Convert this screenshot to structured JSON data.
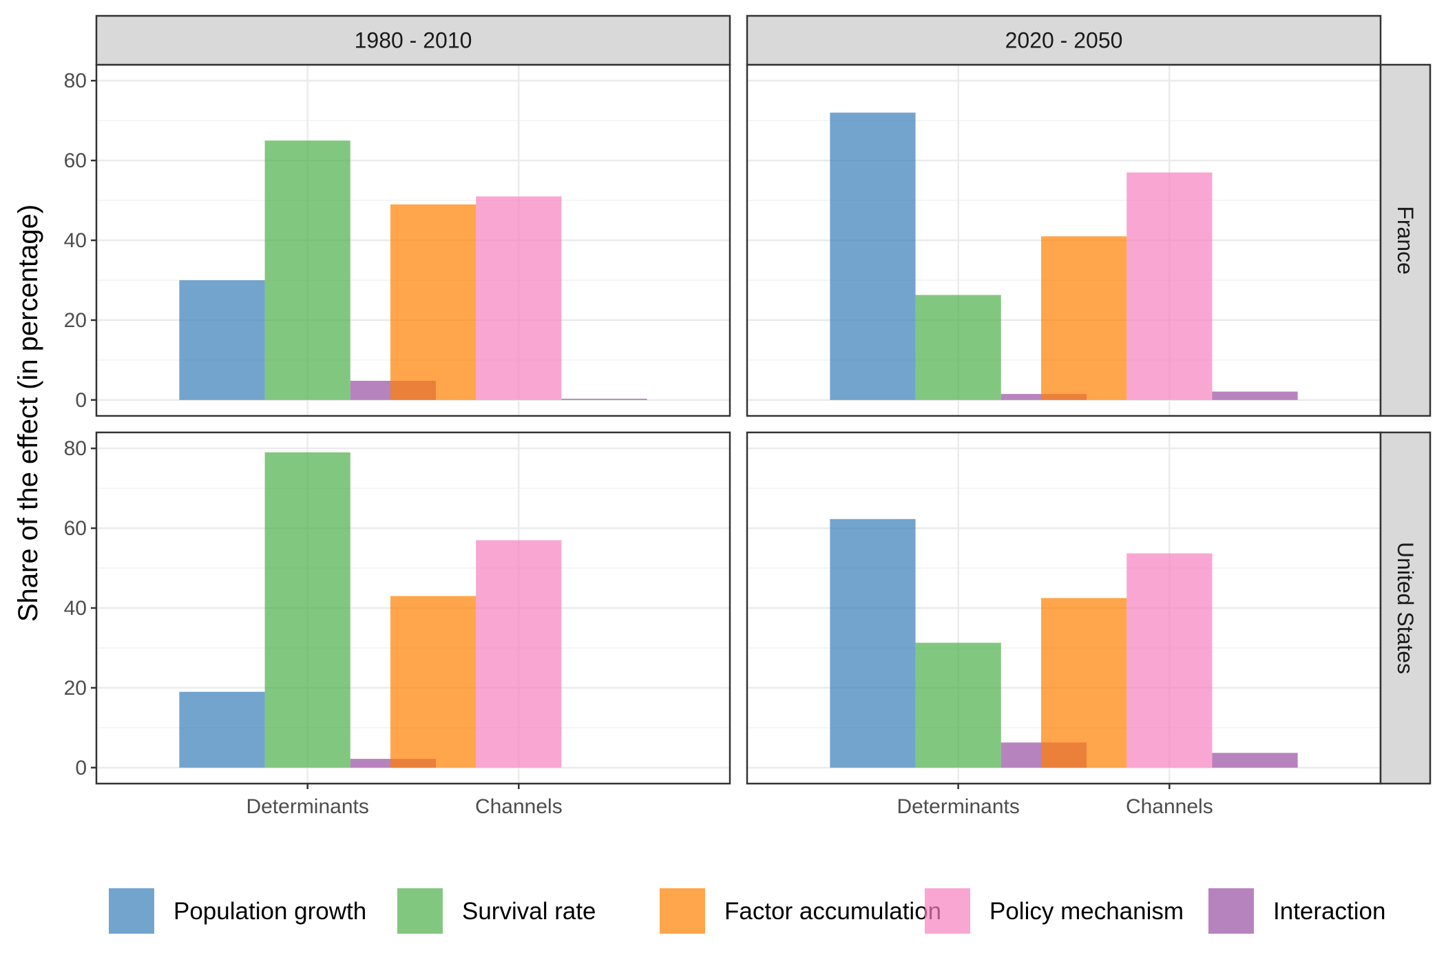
{
  "chart_data": {
    "type": "bar",
    "ylabel": "Share of the effect (in percentage)",
    "xlabel": "",
    "ylim": [
      -4,
      84
    ],
    "y_ticks": [
      0,
      20,
      40,
      60,
      80
    ],
    "grid": true,
    "legend_position": "bottom",
    "col_facets": [
      "1980 - 2010",
      "2020 - 2050"
    ],
    "row_facets": [
      "France",
      "United States"
    ],
    "categories": [
      "Determinants",
      "Channels"
    ],
    "series": [
      {
        "name": "Population growth",
        "color": "#377eb8",
        "category": "Determinants"
      },
      {
        "name": "Survival rate",
        "color": "#4daf4a",
        "category": "Determinants"
      },
      {
        "name": "Factor accumulation",
        "color": "#ff7f00",
        "category": "Channels"
      },
      {
        "name": "Policy mechanism",
        "color": "#f781bf",
        "category": "Channels"
      },
      {
        "name": "Interaction",
        "color": "#984ea3",
        "category": "Both"
      }
    ],
    "panels": [
      {
        "row": "France",
        "col": "1980 - 2010",
        "Determinants": {
          "Population growth": 30,
          "Survival rate": 65,
          "Interaction": 4.8
        },
        "Channels": {
          "Factor accumulation": 49,
          "Policy mechanism": 51,
          "Interaction": 0.3
        }
      },
      {
        "row": "France",
        "col": "2020 - 2050",
        "Determinants": {
          "Population growth": 72,
          "Survival rate": 26.3,
          "Interaction": 1.5
        },
        "Channels": {
          "Factor accumulation": 41,
          "Policy mechanism": 57,
          "Interaction": 2.1
        }
      },
      {
        "row": "United States",
        "col": "1980 - 2010",
        "Determinants": {
          "Population growth": 19,
          "Survival rate": 79,
          "Interaction": 2.2
        },
        "Channels": {
          "Factor accumulation": 43,
          "Policy mechanism": 57,
          "Interaction": 0
        }
      },
      {
        "row": "United States",
        "col": "2020 - 2050",
        "Determinants": {
          "Population growth": 62.3,
          "Survival rate": 31.3,
          "Interaction": 6.3
        },
        "Channels": {
          "Factor accumulation": 42.5,
          "Policy mechanism": 53.7,
          "Interaction": 3.7
        }
      }
    ]
  }
}
